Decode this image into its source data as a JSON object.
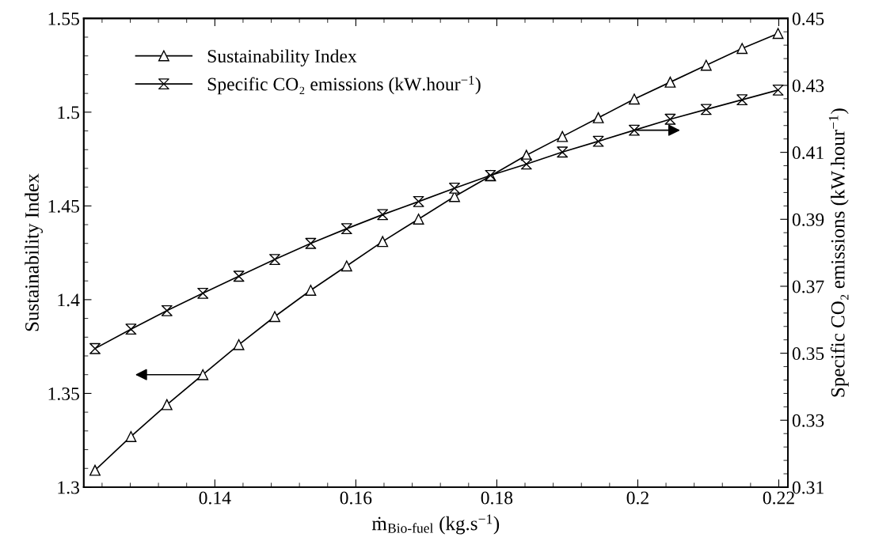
{
  "chart_data": {
    "type": "line",
    "xlabel": "ṁ$_{Bio-fuel}$ (kg.s$^{−1}$)",
    "ylabel": "Sustainability Index",
    "y2label": "Specific CO₂ emissions (kW.hour$^{−1}$)",
    "x": [
      0.123,
      0.1281,
      0.1332,
      0.1383,
      0.1434,
      0.1485,
      0.1536,
      0.1587,
      0.1638,
      0.1689,
      0.174,
      0.1791,
      0.1842,
      0.1893,
      0.1944,
      0.1995,
      0.2046,
      0.2097,
      0.2148,
      0.2199
    ],
    "series": [
      {
        "name": "Sustainability Index",
        "color": "#000000",
        "marker": "triangle",
        "values": [
          1.309,
          1.327,
          1.344,
          1.36,
          1.376,
          1.391,
          1.405,
          1.418,
          1.431,
          1.443,
          1.455,
          1.466,
          1.477,
          1.487,
          1.497,
          1.507,
          1.516,
          1.525,
          1.534,
          1.542
        ]
      },
      {
        "name": "Specific CO₂ emissions (kW.hour$^{−1}$)",
        "color": "#000000",
        "marker": "cross",
        "axis": "y2",
        "values": [
          0.3514,
          0.3572,
          0.3627,
          0.3679,
          0.373,
          0.378,
          0.3828,
          0.3872,
          0.3914,
          0.3953,
          0.3993,
          0.4031,
          0.4065,
          0.4101,
          0.4133,
          0.4166,
          0.4199,
          0.4228,
          0.4257,
          0.4286
        ]
      }
    ],
    "xlim": [
      0.1214,
      0.2213
    ],
    "xticks": [
      0.14,
      0.16,
      0.18,
      {
        "value": 0.2,
        "label": "0.2"
      },
      0.22
    ],
    "ylim": [
      1.3,
      1.55
    ],
    "yticks": [
      1.3,
      1.35,
      {
        "value": 1.4,
        "label": "1.4"
      },
      1.45,
      {
        "value": 1.5,
        "label": "1.5"
      },
      1.55
    ],
    "y2lim": [
      0.31,
      0.45
    ],
    "y2ticks": [
      0.31,
      0.33,
      0.35,
      0.37,
      0.39,
      0.41,
      0.43,
      0.45
    ],
    "legend": "top left",
    "grid": false,
    "line_style": "solid"
  }
}
